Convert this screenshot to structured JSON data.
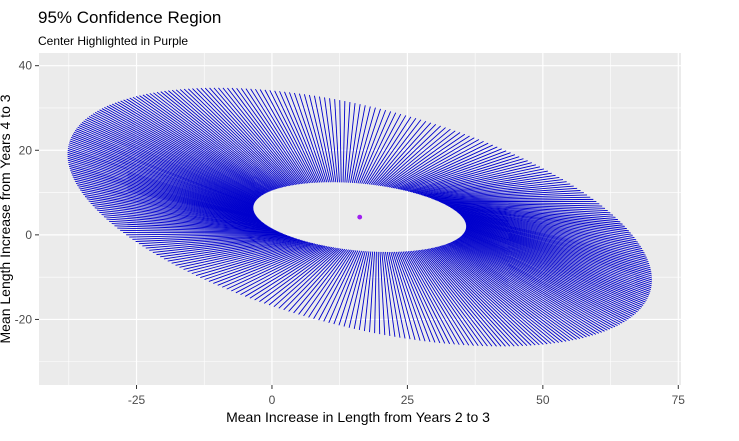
{
  "chart_data": {
    "type": "scatter",
    "title": "95% Confidence Region",
    "subtitle": "Center Highlighted in Purple",
    "xlabel": "Mean Increase in Length from Years 2 to 3",
    "ylabel": "Mean Length Increase from Years 4 to 3",
    "xlim": [
      -43,
      75.5
    ],
    "ylim": [
      -35.5,
      43
    ],
    "x_ticks": [
      -25,
      0,
      25,
      50,
      75
    ],
    "y_ticks": [
      -20,
      0,
      20,
      40
    ],
    "x_tick_labels": [
      "-25",
      "0",
      "25",
      "50",
      "75"
    ],
    "y_tick_labels": [
      "-20",
      "0",
      "20",
      "40"
    ],
    "grid": true,
    "panel_color": "#ebebeb",
    "grid_color": "#ffffff",
    "segment_color": "#0000cd",
    "center_color": "#a020f0",
    "center": {
      "x": 16.2,
      "y": 4.2
    },
    "outer_ellipse": {
      "center_x": 16.2,
      "center_y": 4.2,
      "semi_axis_major": 56.5,
      "semi_axis_minor": 25.5,
      "angle_deg": -19.5
    },
    "inner_ellipse": {
      "center_x": 16.2,
      "center_y": 4.2,
      "semi_axis_major": 19.8,
      "semi_axis_minor": 7.9,
      "angle_deg": -7.5
    },
    "segment_count": 360
  }
}
